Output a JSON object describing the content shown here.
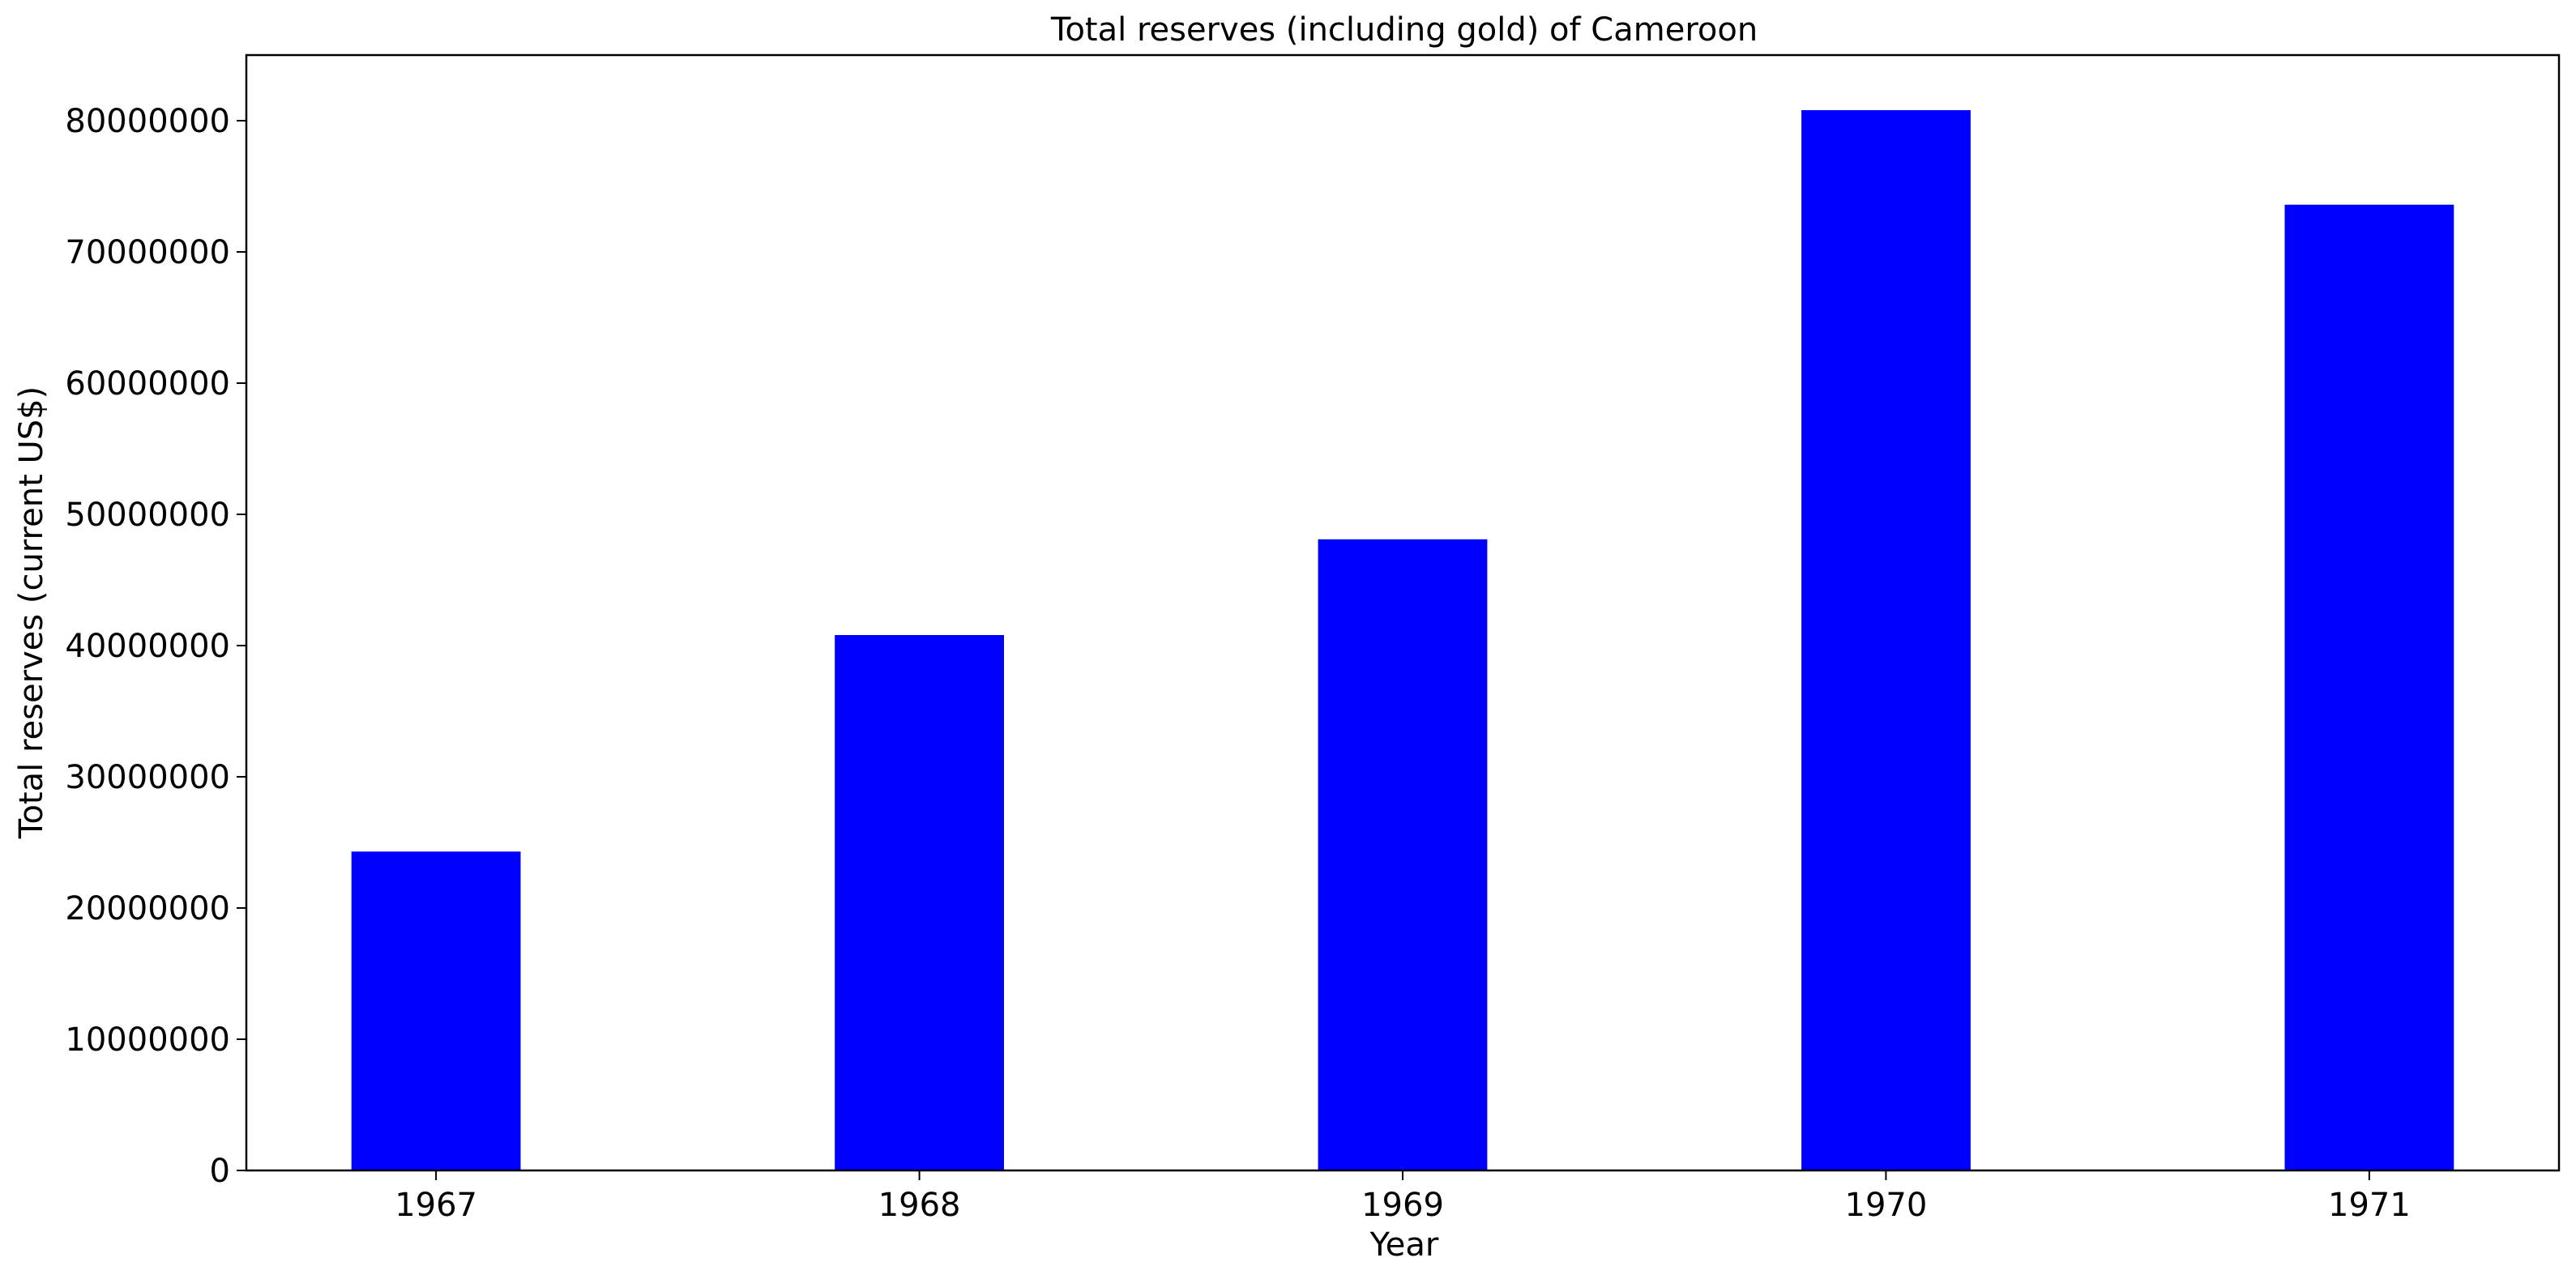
{
  "chart_data": {
    "type": "bar",
    "title": "Total reserves (including gold) of Cameroon",
    "xlabel": "Year",
    "ylabel": "Total reserves (current US$)",
    "categories": [
      "1967",
      "1968",
      "1969",
      "1970",
      "1971"
    ],
    "values": [
      24300000,
      40800000,
      48100000,
      80800000,
      73600000
    ],
    "ylim": [
      0,
      85000000
    ],
    "yticks": [
      0,
      10000000,
      20000000,
      30000000,
      40000000,
      50000000,
      60000000,
      70000000,
      80000000
    ],
    "ytick_labels": [
      "0",
      "10000000",
      "20000000",
      "30000000",
      "40000000",
      "50000000",
      "60000000",
      "70000000",
      "80000000"
    ],
    "bar_color": "#0000ff",
    "grid": false,
    "legend": false
  }
}
